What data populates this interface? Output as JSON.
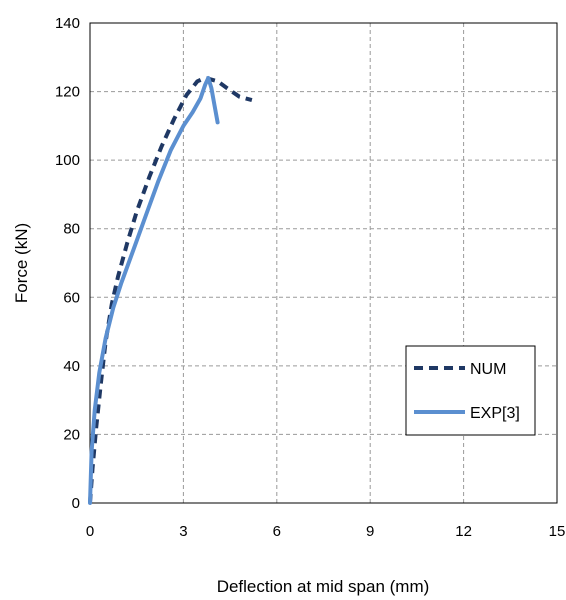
{
  "chart_data": {
    "type": "line",
    "title": "",
    "xlabel": "Deflection at mid span (mm)",
    "ylabel": "Force (kN)",
    "xlim": [
      0,
      15
    ],
    "ylim": [
      0,
      140
    ],
    "xticks": [
      0,
      3,
      6,
      9,
      12,
      15
    ],
    "yticks": [
      0,
      20,
      40,
      60,
      80,
      100,
      120,
      140
    ],
    "grid": true,
    "legend_position": "lower-right",
    "series": [
      {
        "name": "NUM",
        "style": "dashed",
        "color": "#1f3864",
        "x": [
          0,
          0.08,
          0.2,
          0.35,
          0.5,
          0.7,
          0.9,
          1.2,
          1.5,
          1.9,
          2.3,
          2.7,
          3.1,
          3.45,
          3.7,
          3.9,
          4.1,
          4.4,
          4.8,
          5.2
        ],
        "y": [
          0,
          10,
          22,
          35,
          47,
          58,
          66,
          76,
          85,
          95,
          104,
          112,
          119,
          123,
          124,
          123.5,
          123,
          121,
          118.5,
          117.5
        ]
      },
      {
        "name": "EXP[3]",
        "style": "solid",
        "color": "#5b8fd0",
        "x": [
          0,
          0.05,
          0.15,
          0.3,
          0.5,
          0.75,
          1.0,
          1.4,
          1.8,
          2.2,
          2.6,
          3.0,
          3.3,
          3.55,
          3.7,
          3.8,
          3.9,
          4.0,
          4.1
        ],
        "y": [
          0,
          15,
          27,
          38,
          48,
          57,
          64,
          74,
          84,
          94,
          103,
          110,
          114,
          118,
          122,
          124,
          121,
          116,
          111
        ]
      }
    ]
  }
}
